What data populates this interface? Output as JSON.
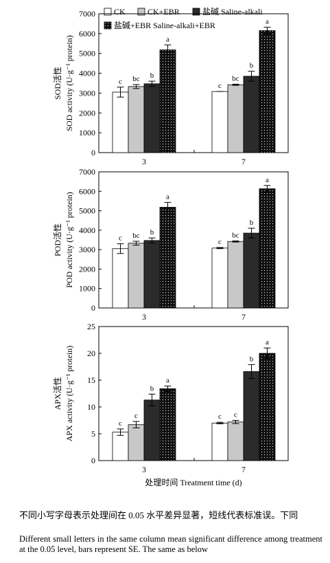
{
  "legend": [
    {
      "label": "CK",
      "pattern": "white"
    },
    {
      "label": "CK+EBR",
      "pattern": "gray"
    },
    {
      "label": "盐碱 Saline-alkali",
      "pattern": "dark"
    },
    {
      "label": "盐碱+EBR Saline-alkali+EBR",
      "pattern": "dotted"
    }
  ],
  "colors": {
    "white": "#ffffff",
    "gray": "#c8c8c8",
    "dark": "#2b2b2b",
    "dotted": "#111111"
  },
  "xlabel": "处理时间 Treatment time (d)",
  "caption_cn": "不同小写字母表示处理间在 0.05 水平差异显著，短线代表标准误。下同",
  "caption_en": "Different small letters in the same column mean significant difference among treatment at the 0.05 level, bars represent SE. The same as below",
  "chart_data": [
    {
      "type": "bar",
      "ylabel_cn": "SOD活性",
      "ylabel_en": "SOD activity (U·g⁻¹ protein)",
      "categories": [
        "3",
        "7"
      ],
      "ylim": [
        0,
        7000
      ],
      "yticks": [
        0,
        1000,
        2000,
        3000,
        4000,
        5000,
        6000,
        7000
      ],
      "series": [
        {
          "name": "CK",
          "values": [
            3050,
            3080
          ],
          "se": [
            250,
            0
          ],
          "letters": [
            "c",
            "c"
          ]
        },
        {
          "name": "CK+EBR",
          "values": [
            3330,
            3420
          ],
          "se": [
            100,
            30
          ],
          "letters": [
            "bc",
            "bc"
          ]
        },
        {
          "name": "盐碱 Saline-alkali",
          "values": [
            3470,
            3850
          ],
          "se": [
            130,
            250
          ],
          "letters": [
            "b",
            "b"
          ]
        },
        {
          "name": "盐碱+EBR Saline-alkali+EBR",
          "values": [
            5180,
            6150
          ],
          "se": [
            250,
            170
          ],
          "letters": [
            "a",
            "a"
          ]
        }
      ]
    },
    {
      "type": "bar",
      "ylabel_cn": "POD活性",
      "ylabel_en": "POD activity (U·g⁻¹ protein)",
      "categories": [
        "3",
        "7"
      ],
      "ylim": [
        0,
        7000
      ],
      "yticks": [
        0,
        1000,
        2000,
        3000,
        4000,
        5000,
        6000,
        7000
      ],
      "series": [
        {
          "name": "CK",
          "values": [
            3050,
            3080
          ],
          "se": [
            250,
            30
          ],
          "letters": [
            "c",
            "c"
          ]
        },
        {
          "name": "CK+EBR",
          "values": [
            3330,
            3420
          ],
          "se": [
            100,
            30
          ],
          "letters": [
            "bc",
            "bc"
          ]
        },
        {
          "name": "盐碱 Saline-alkali",
          "values": [
            3470,
            3850
          ],
          "se": [
            130,
            250
          ],
          "letters": [
            "b",
            "b"
          ]
        },
        {
          "name": "盐碱+EBR Saline-alkali+EBR",
          "values": [
            5180,
            6130
          ],
          "se": [
            250,
            170
          ],
          "letters": [
            "a",
            "a"
          ]
        }
      ]
    },
    {
      "type": "bar",
      "ylabel_cn": "APX活性",
      "ylabel_en": "APX activity (U·g⁻¹ protein)",
      "categories": [
        "3",
        "7"
      ],
      "ylim": [
        0,
        25
      ],
      "yticks": [
        0,
        5,
        10,
        15,
        20,
        25
      ],
      "series": [
        {
          "name": "CK",
          "values": [
            5.3,
            7.0
          ],
          "se": [
            0.6,
            0.15
          ],
          "letters": [
            "c",
            "c"
          ]
        },
        {
          "name": "CK+EBR",
          "values": [
            6.7,
            7.2
          ],
          "se": [
            0.6,
            0.3
          ],
          "letters": [
            "c",
            "c"
          ]
        },
        {
          "name": "盐碱 Saline-alkali",
          "values": [
            11.3,
            16.6
          ],
          "se": [
            1.1,
            1.3
          ],
          "letters": [
            "b",
            "b"
          ]
        },
        {
          "name": "盐碱+EBR Saline-alkali+EBR",
          "values": [
            13.4,
            20.0
          ],
          "se": [
            0.5,
            1.0
          ],
          "letters": [
            "a",
            "a"
          ]
        }
      ]
    }
  ]
}
